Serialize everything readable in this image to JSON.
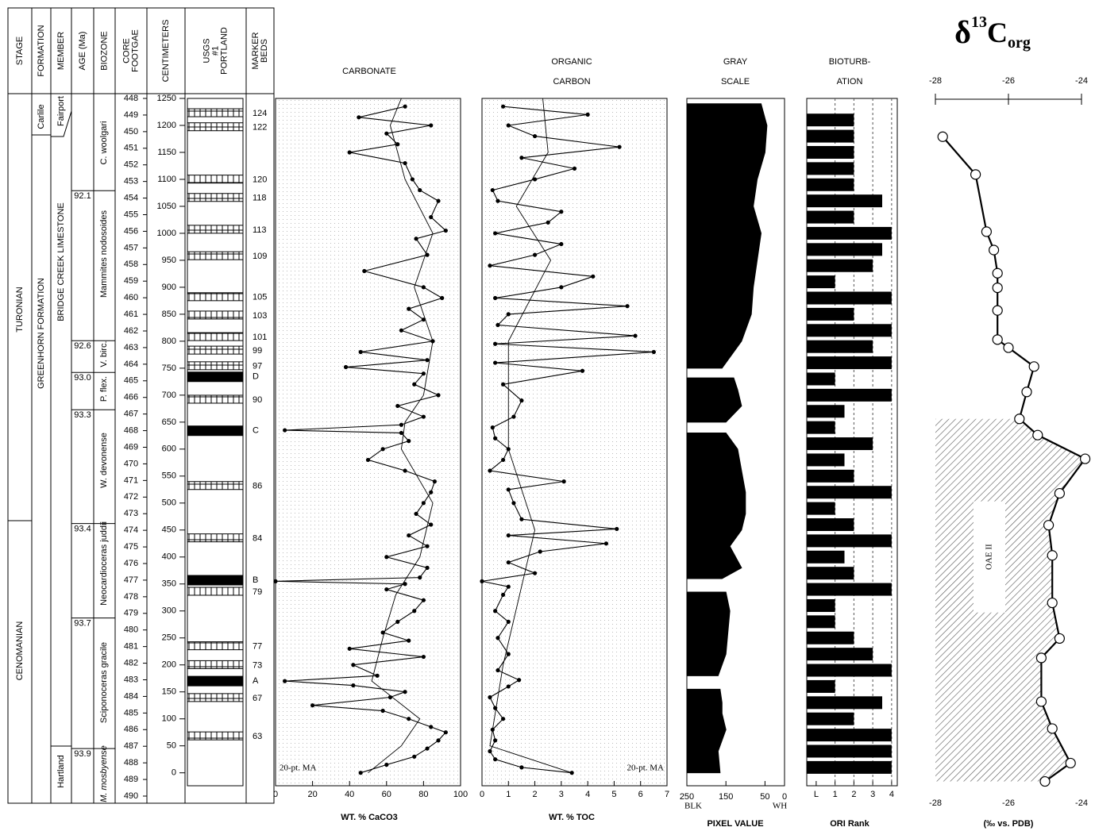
{
  "column": {
    "headers": [
      [
        "STAGE"
      ],
      [
        "FORMATION"
      ],
      [
        "MEMBER"
      ],
      [
        "AGE (Ma)"
      ],
      [
        "BIOZONE"
      ],
      [
        "CORE",
        "FOOTGAE"
      ],
      [
        "CENTIMETERS"
      ],
      [
        "USGS",
        "#1",
        "PORTLAND"
      ],
      [
        "MARKER",
        "BEDS"
      ]
    ],
    "stages": [
      "TURONIAN",
      "CENOMANIAN"
    ],
    "formations": [
      "Carlile",
      "GREENHORN FORMATION"
    ],
    "members": [
      "Fairport",
      "BRIDGE CREEK LIMESTONE",
      "Hartland"
    ],
    "biozones": [
      "C. woolgari",
      "Mammites nodosoides",
      "V. birc.",
      "P. flex.",
      "W. devonense",
      "Neocardioceras juddii",
      "Sciponoceras gracile",
      "M. mosbyense"
    ],
    "ages": [
      {
        "label": "92.1",
        "depth": 1079
      },
      {
        "label": "92.6",
        "depth": 801
      },
      {
        "label": "93.0",
        "depth": 742
      },
      {
        "label": "93.3",
        "depth": 673
      },
      {
        "label": "93.4",
        "depth": 462
      },
      {
        "label": "93.7",
        "depth": 287
      },
      {
        "label": "93.9",
        "depth": 45
      }
    ],
    "marker_beds": [
      {
        "label": "124",
        "depth": 1222
      },
      {
        "label": "122",
        "depth": 1196
      },
      {
        "label": "120",
        "depth": 1099
      },
      {
        "label": "118",
        "depth": 1065
      },
      {
        "label": "113",
        "depth": 1006
      },
      {
        "label": "109",
        "depth": 957
      },
      {
        "label": "105",
        "depth": 881
      },
      {
        "label": "103",
        "depth": 847
      },
      {
        "label": "101",
        "depth": 807
      },
      {
        "label": "99",
        "depth": 782
      },
      {
        "label": "97",
        "depth": 753
      },
      {
        "label": "D",
        "depth": 734
      },
      {
        "label": "90",
        "depth": 691
      },
      {
        "label": "C",
        "depth": 634
      },
      {
        "label": "86",
        "depth": 531
      },
      {
        "label": "84",
        "depth": 434
      },
      {
        "label": "B",
        "depth": 357
      },
      {
        "label": "79",
        "depth": 335
      },
      {
        "label": "77",
        "depth": 234
      },
      {
        "label": "73",
        "depth": 199
      },
      {
        "label": "A",
        "depth": 170
      },
      {
        "label": "67",
        "depth": 138
      },
      {
        "label": "63",
        "depth": 67
      }
    ],
    "core_footage": {
      "lim": [
        448,
        490
      ],
      "ticks": [
        448,
        449,
        450,
        451,
        452,
        453,
        454,
        455,
        456,
        457,
        458,
        459,
        460,
        461,
        462,
        463,
        464,
        465,
        466,
        467,
        468,
        469,
        470,
        471,
        472,
        473,
        474,
        475,
        476,
        477,
        478,
        479,
        480,
        481,
        482,
        483,
        484,
        485,
        486,
        487,
        488,
        489,
        490
      ]
    },
    "centimeters": {
      "lim": [
        -24,
        1250
      ],
      "ticks": [
        0,
        50,
        100,
        150,
        200,
        250,
        300,
        350,
        400,
        450,
        500,
        550,
        600,
        650,
        700,
        750,
        800,
        850,
        900,
        950,
        1000,
        1050,
        1100,
        1150,
        1200,
        1250
      ]
    }
  },
  "chart_data": [
    {
      "type": "line",
      "title": [
        "CARBONATE"
      ],
      "xlabel": "WT. % CaCO3",
      "annotation": "20-pt. MA",
      "xlim": [
        0,
        100
      ],
      "xticks": [
        0,
        20,
        40,
        60,
        80,
        100
      ],
      "series": [
        {
          "color": "#000000",
          "markers": "filled",
          "depth": [
            0,
            15,
            30,
            45,
            60,
            75,
            85,
            100,
            115,
            125,
            140,
            150,
            162,
            170,
            180,
            200,
            215,
            230,
            245,
            260,
            280,
            300,
            320,
            340,
            350,
            355,
            362,
            380,
            400,
            420,
            440,
            460,
            480,
            500,
            520,
            540,
            560,
            580,
            600,
            615,
            630,
            635,
            645,
            660,
            680,
            700,
            720,
            740,
            752,
            765,
            780,
            800,
            820,
            840,
            860,
            880,
            900,
            930,
            960,
            990,
            1005,
            1030,
            1060,
            1080,
            1100,
            1130,
            1150,
            1165,
            1185,
            1200,
            1215,
            1235
          ],
          "values": [
            46,
            60,
            75,
            82,
            88,
            92,
            84,
            72,
            58,
            20,
            62,
            70,
            42,
            5,
            55,
            42,
            80,
            40,
            72,
            58,
            66,
            75,
            80,
            60,
            70,
            0,
            78,
            82,
            60,
            82,
            72,
            84,
            76,
            80,
            84,
            86,
            70,
            50,
            58,
            72,
            68,
            5,
            68,
            80,
            66,
            88,
            75,
            80,
            38,
            82,
            46,
            85,
            68,
            80,
            72,
            90,
            80,
            48,
            82,
            76,
            92,
            84,
            88,
            78,
            74,
            70,
            40,
            66,
            60,
            84,
            45,
            70
          ]
        },
        {
          "color": "#000000",
          "depth": [
            0,
            50,
            100,
            170,
            250,
            330,
            400,
            500,
            600,
            650,
            700,
            800,
            900,
            1000,
            1100,
            1200,
            1250
          ],
          "values": [
            50,
            68,
            78,
            52,
            58,
            65,
            78,
            85,
            68,
            70,
            80,
            85,
            75,
            85,
            70,
            62,
            68
          ]
        }
      ]
    },
    {
      "type": "line",
      "title": [
        "ORGANIC",
        "CARBON"
      ],
      "xlabel": "WT. % TOC",
      "annotation": "20-pt. MA",
      "xlim": [
        0,
        7
      ],
      "xticks": [
        0,
        1,
        2,
        3,
        4,
        5,
        6,
        7
      ],
      "series": [
        {
          "color": "#000000",
          "markers": "filled",
          "depth": [
            0,
            10,
            25,
            40,
            60,
            80,
            100,
            120,
            140,
            160,
            172,
            190,
            220,
            250,
            280,
            300,
            330,
            345,
            355,
            370,
            390,
            410,
            425,
            440,
            452,
            470,
            500,
            525,
            540,
            560,
            580,
            600,
            620,
            640,
            660,
            690,
            720,
            745,
            760,
            780,
            795,
            810,
            830,
            850,
            865,
            880,
            900,
            920,
            940,
            960,
            980,
            1000,
            1020,
            1040,
            1060,
            1080,
            1100,
            1120,
            1140,
            1160,
            1180,
            1200,
            1220,
            1235
          ],
          "values": [
            3.4,
            1.5,
            0.5,
            0.3,
            0.5,
            0.4,
            0.8,
            0.5,
            0.3,
            1.0,
            1.4,
            0.6,
            1.0,
            0.6,
            1.0,
            0.5,
            0.8,
            1.0,
            0,
            2.0,
            1.0,
            2.2,
            4.7,
            1.0,
            5.1,
            1.5,
            1.2,
            1.0,
            3.1,
            0.3,
            0.8,
            1.0,
            0.5,
            0.4,
            1.2,
            1.5,
            0.8,
            3.8,
            0.5,
            6.5,
            0.5,
            5.8,
            0.6,
            1.0,
            5.5,
            0.5,
            3.0,
            4.2,
            0.3,
            2.0,
            3.0,
            0.5,
            2.5,
            3.0,
            0.6,
            0.4,
            2.0,
            3.5,
            1.5,
            5.2,
            2.0,
            1.0,
            4.0,
            0.8
          ]
        },
        {
          "color": "#000000",
          "depth": [
            0,
            50,
            200,
            450,
            600,
            800,
            950,
            1050,
            1150,
            1250
          ],
          "values": [
            3.4,
            0.3,
            0.8,
            2.0,
            1.0,
            1.0,
            2.6,
            1.3,
            2.5,
            2.3
          ]
        }
      ]
    },
    {
      "type": "area",
      "title": [
        "GRAY",
        "SCALE"
      ],
      "xlabel": "PIXEL VALUE",
      "xlim_labels": [
        "BLK",
        "WH"
      ],
      "xlim": [
        250,
        0
      ],
      "xticks": [
        250,
        150,
        50,
        0
      ],
      "color": "#000000",
      "depth": [
        0,
        40,
        80,
        110,
        130,
        155,
        165,
        180,
        220,
        260,
        300,
        335,
        348,
        360,
        380,
        420,
        450,
        480,
        520,
        560,
        600,
        630,
        638,
        650,
        680,
        710,
        732,
        742,
        750,
        800,
        850,
        900,
        950,
        1000,
        1050,
        1100,
        1150,
        1200,
        1240
      ],
      "values": [
        165,
        170,
        150,
        160,
        160,
        165,
        null,
        170,
        150,
        145,
        140,
        150,
        null,
        160,
        110,
        140,
        110,
        100,
        100,
        110,
        120,
        150,
        null,
        150,
        110,
        120,
        130,
        null,
        160,
        110,
        85,
        80,
        70,
        60,
        80,
        70,
        50,
        45,
        60
      ]
    },
    {
      "type": "bar",
      "title": [
        "BIOTURB-",
        "ATION"
      ],
      "xlabel": "ORI Rank",
      "color": "#000000",
      "grid": true,
      "xlim": [
        -0.5,
        4.3
      ],
      "xticks": [
        {
          "value": 0,
          "label": "L"
        },
        1,
        2,
        3,
        4
      ],
      "depth": [
        10,
        40,
        70,
        100,
        130,
        160,
        190,
        220,
        250,
        280,
        310,
        340,
        370,
        400,
        430,
        460,
        490,
        520,
        550,
        580,
        610,
        640,
        670,
        700,
        730,
        760,
        790,
        820,
        850,
        880,
        910,
        940,
        970,
        1000,
        1030,
        1060,
        1090,
        1120,
        1150,
        1180,
        1210
      ],
      "values": [
        4,
        4,
        4,
        2,
        3.5,
        1,
        4,
        3,
        2,
        1,
        1,
        4,
        2,
        1.5,
        4,
        2,
        1,
        4,
        2,
        1.5,
        3,
        1,
        1.5,
        4,
        1,
        4,
        3,
        4,
        2,
        4,
        1,
        3,
        3.5,
        4,
        2,
        3.5,
        2,
        2,
        2,
        2,
        2
      ]
    },
    {
      "type": "line",
      "title": [
        "δ",
        "13",
        "C",
        "org"
      ],
      "xlabel": "(‰ vs. PDB)",
      "annotation": "OAE II",
      "xlim": [
        -28,
        -24
      ],
      "xticks": [
        -28,
        -26,
        -24
      ],
      "series": [
        {
          "color": "#000000",
          "markers": "open",
          "depth": [
            1179,
            1109,
            1003,
            969,
            926,
            899,
            857,
            803,
            788,
            753,
            706,
            656,
            626,
            582,
            518,
            459,
            403,
            315,
            249,
            213,
            132,
            82,
            18,
            -16
          ],
          "values": [
            -27.8,
            -26.9,
            -26.6,
            -26.4,
            -26.3,
            -26.3,
            -26.3,
            -26.3,
            -26.0,
            -25.3,
            -25.5,
            -25.7,
            -25.2,
            -23.9,
            -24.6,
            -24.9,
            -24.8,
            -24.8,
            -24.6,
            -25.1,
            -25.1,
            -24.8,
            -24.3,
            -25.0
          ]
        }
      ]
    }
  ]
}
